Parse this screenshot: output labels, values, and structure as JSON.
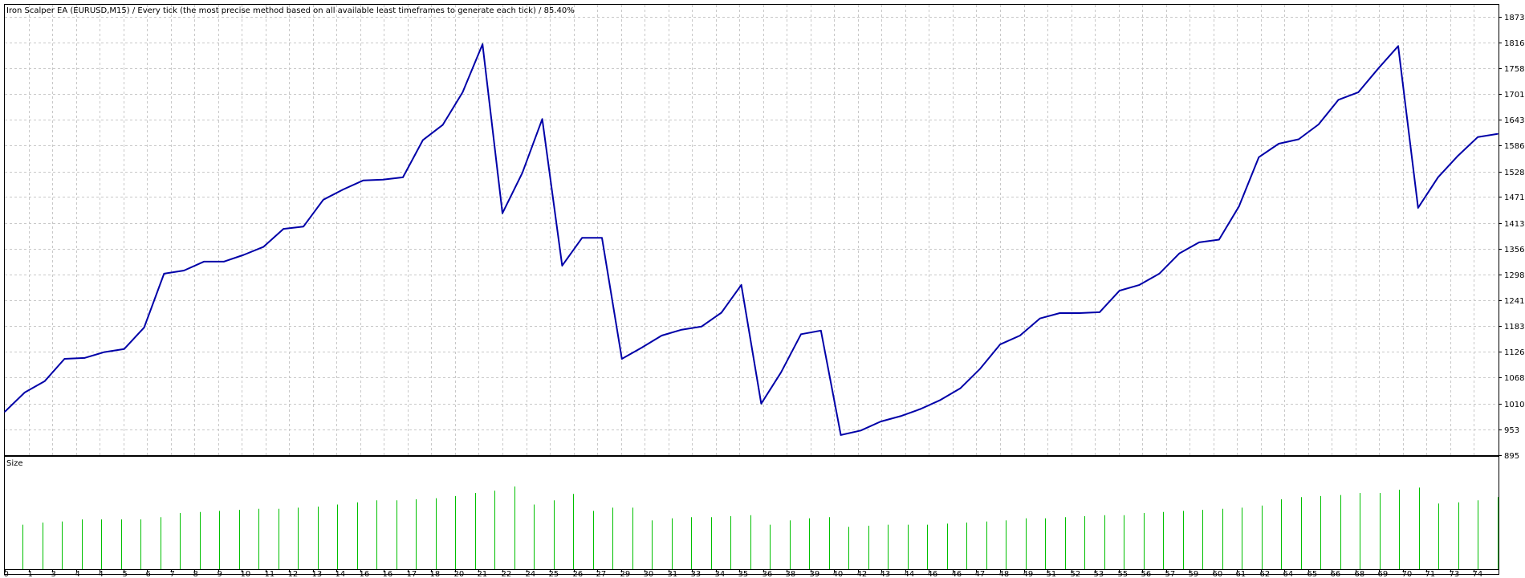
{
  "header": {
    "title": "Iron Scalper EA (EURUSD,M15) / Every tick (the most precise method based on all available least timeframes to generate each tick) / 85.40%"
  },
  "colors": {
    "balance_line": "#0000a8",
    "equity_line": "#00a000",
    "size_bars": "#00c000",
    "grid": "#c8c8c8",
    "background": "#ffffff",
    "frame": "#000000"
  },
  "chart_data": [
    {
      "type": "line",
      "title": "Iron Scalper EA (EURUSD,M15) / Every tick (the most precise method based on all available least timeframes to generate each tick) / 85.40%",
      "ylim": [
        895,
        1900
      ],
      "y_ticks": [
        1873,
        1816,
        1758,
        1701,
        1643,
        1586,
        1528,
        1471,
        1413,
        1356,
        1298,
        1241,
        1183,
        1126,
        1068,
        1010,
        953,
        895
      ],
      "grid": true,
      "series": [
        {
          "values": [
            992,
            1035,
            1060,
            1110,
            1112,
            1125,
            1132,
            1180,
            1300,
            1307,
            1327,
            1327,
            1342,
            1360,
            1400,
            1405,
            1465,
            1488,
            1508,
            1510,
            1515,
            1598,
            1632,
            1705,
            1812,
            1435,
            1525,
            1645,
            1318,
            1380,
            1380,
            1110,
            1135,
            1162,
            1175,
            1182,
            1213,
            1275,
            1010,
            1080,
            1165,
            1173,
            940,
            950,
            970,
            982,
            998,
            1018,
            1044,
            1088,
            1142,
            1162,
            1200,
            1212,
            1212,
            1214,
            1262,
            1275,
            1300,
            1345,
            1370,
            1376,
            1450,
            1560,
            1590,
            1600,
            1633,
            1688,
            1705,
            1758,
            1808,
            1447,
            1515,
            1563,
            1605,
            1612
          ]
        }
      ]
    },
    {
      "type": "bar",
      "title": "Size",
      "values": [
        0.42,
        0.44,
        0.45,
        0.47,
        0.47,
        0.47,
        0.47,
        0.49,
        0.53,
        0.54,
        0.55,
        0.56,
        0.57,
        0.57,
        0.58,
        0.59,
        0.61,
        0.63,
        0.65,
        0.65,
        0.66,
        0.67,
        0.69,
        0.72,
        0.74,
        0.78,
        0.61,
        0.65,
        0.71,
        0.55,
        0.58,
        0.58,
        0.46,
        0.48,
        0.49,
        0.49,
        0.5,
        0.51,
        0.42,
        0.46,
        0.48,
        0.49,
        0.4,
        0.41,
        0.42,
        0.42,
        0.42,
        0.43,
        0.44,
        0.45,
        0.46,
        0.48,
        0.48,
        0.49,
        0.5,
        0.51,
        0.51,
        0.53,
        0.54,
        0.55,
        0.56,
        0.57,
        0.58,
        0.6,
        0.66,
        0.68,
        0.69,
        0.7,
        0.72,
        0.72,
        0.75,
        0.77,
        0.62,
        0.63,
        0.65,
        0.68
      ]
    },
    {
      "type": "axis",
      "categories": [
        "0",
        "1",
        "3",
        "4",
        "4",
        "5",
        "6",
        "7",
        "8",
        "9",
        "10",
        "11",
        "12",
        "13",
        "14",
        "16",
        "16",
        "17",
        "18",
        "20",
        "21",
        "22",
        "24",
        "25",
        "26",
        "27",
        "29",
        "30",
        "31",
        "33",
        "34",
        "35",
        "36",
        "38",
        "39",
        "40",
        "42",
        "43",
        "44",
        "46",
        "46",
        "47",
        "48",
        "49",
        "51",
        "52",
        "53",
        "55",
        "56",
        "57",
        "59",
        "60",
        "61",
        "62",
        "64",
        "65",
        "66",
        "68",
        "69",
        "70",
        "71",
        "73",
        "74"
      ]
    }
  ]
}
